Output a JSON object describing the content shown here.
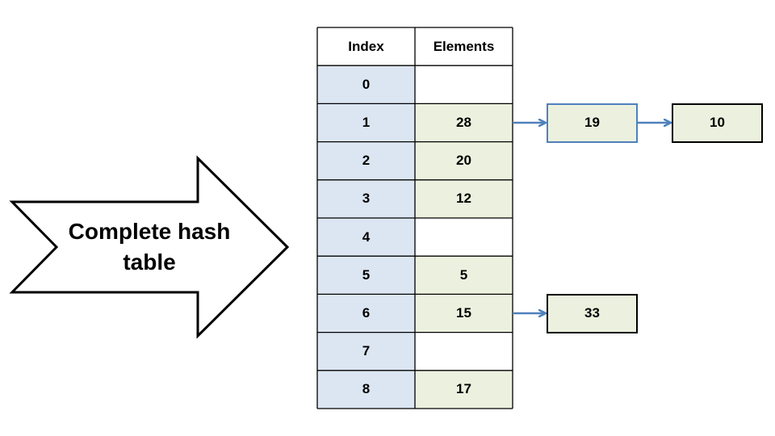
{
  "arrow_label": "Complete hash table",
  "table": {
    "headers": {
      "index": "Index",
      "elements": "Elements"
    },
    "rows": [
      {
        "index": "0",
        "element": ""
      },
      {
        "index": "1",
        "element": "28"
      },
      {
        "index": "2",
        "element": "20"
      },
      {
        "index": "3",
        "element": "12"
      },
      {
        "index": "4",
        "element": ""
      },
      {
        "index": "5",
        "element": "5"
      },
      {
        "index": "6",
        "element": "15"
      },
      {
        "index": "7",
        "element": ""
      },
      {
        "index": "8",
        "element": "17"
      }
    ]
  },
  "chains": [
    {
      "row": 1,
      "nodes": [
        {
          "value": "19",
          "border": "#4f81bd"
        },
        {
          "value": "10",
          "border": "#000000"
        }
      ]
    },
    {
      "row": 6,
      "nodes": [
        {
          "value": "33",
          "border": "#000000"
        }
      ]
    }
  ],
  "colors": {
    "index_fill": "#dce6f2",
    "element_fill": "#ebf1de",
    "empty_fill": "#ffffff",
    "grid": "#000000",
    "arrow": "#4f81bd",
    "node_fill": "#ebf1de"
  }
}
